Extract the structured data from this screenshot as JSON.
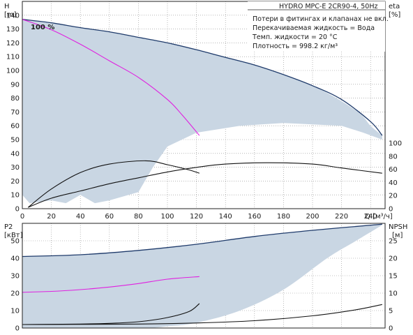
{
  "chart_data": [
    {
      "type": "line",
      "title": "HYDRO MPC-E 2CR90-4, 50Hz",
      "notes": [
        "Потери в фитингах и клапанах не вкл.",
        "Перекачиваемая жидкость = Вода",
        "Темп. жидкости = 20 °C",
        "Плотность = 998.2 кг/м³"
      ],
      "speed_label": "100 %",
      "xlabel": "Q [м³/ч]",
      "xlim": [
        0,
        250
      ],
      "x_ticks": [
        0,
        20,
        40,
        60,
        80,
        100,
        120,
        140,
        160,
        180,
        200,
        220,
        240
      ],
      "left_axis": {
        "label": "H",
        "unit": "[m]",
        "range": [
          0,
          150
        ],
        "ticks": [
          0,
          10,
          20,
          30,
          40,
          50,
          60,
          70,
          80,
          90,
          100,
          110,
          120,
          130,
          140
        ]
      },
      "right_axis": {
        "label": "eta",
        "unit": "[%]",
        "range": [
          0,
          100
        ],
        "ticks": [
          0,
          20,
          40,
          60,
          80,
          100
        ]
      },
      "grid": true,
      "colors": {
        "navy": "#1f3b6b",
        "magenta": "#e020e0",
        "black": "#111111",
        "area": "#c9d6e3"
      },
      "area_series": {
        "axis": "H",
        "upper": [
          [
            0,
            137
          ],
          [
            40,
            131
          ],
          [
            80,
            124
          ],
          [
            120,
            115
          ],
          [
            160,
            104
          ],
          [
            200,
            89
          ],
          [
            230,
            71
          ],
          [
            240,
            60
          ],
          [
            248,
            53
          ]
        ],
        "lower": [
          [
            248,
            50
          ],
          [
            235,
            55
          ],
          [
            220,
            60
          ],
          [
            180,
            62
          ],
          [
            150,
            60
          ],
          [
            120,
            55
          ],
          [
            100,
            45
          ],
          [
            90,
            30
          ],
          [
            80,
            12
          ],
          [
            60,
            6
          ],
          [
            50,
            4
          ],
          [
            40,
            10
          ],
          [
            30,
            4
          ],
          [
            20,
            6
          ],
          [
            5,
            4
          ],
          [
            0,
            10
          ]
        ]
      },
      "series": [
        {
          "axis": "H",
          "color": "navy",
          "points": [
            [
              0,
              137
            ],
            [
              20,
              134.5
            ],
            [
              40,
              131
            ],
            [
              60,
              128
            ],
            [
              80,
              124
            ],
            [
              100,
              120
            ],
            [
              120,
              115
            ],
            [
              140,
              109.5
            ],
            [
              160,
              104
            ],
            [
              180,
              97
            ],
            [
              200,
              89
            ],
            [
              220,
              79
            ],
            [
              240,
              63
            ],
            [
              248,
              53
            ]
          ]
        },
        {
          "axis": "H",
          "color": "magenta",
          "points": [
            [
              0,
              137
            ],
            [
              20,
              129.5
            ],
            [
              40,
              119
            ],
            [
              60,
              107
            ],
            [
              80,
              95
            ],
            [
              100,
              79
            ],
            [
              110,
              68
            ],
            [
              122,
              53
            ]
          ]
        },
        {
          "axis": "eta",
          "color": "black",
          "points": [
            [
              4,
              2
            ],
            [
              20,
              30
            ],
            [
              40,
              55
            ],
            [
              60,
              68
            ],
            [
              85,
              73
            ],
            [
              100,
              67
            ],
            [
              115,
              59
            ],
            [
              122,
              54
            ]
          ]
        },
        {
          "axis": "eta",
          "color": "black",
          "points": [
            [
              4,
              2
            ],
            [
              20,
              16
            ],
            [
              40,
              27
            ],
            [
              60,
              38
            ],
            [
              80,
              47
            ],
            [
              100,
              56
            ],
            [
              120,
              63
            ],
            [
              140,
              68
            ],
            [
              170,
              70
            ],
            [
              200,
              68
            ],
            [
              220,
              62
            ],
            [
              248,
              54
            ]
          ]
        }
      ]
    },
    {
      "type": "line",
      "xlim": [
        0,
        250
      ],
      "left_axis": {
        "label": "P2",
        "unit": "[кВт]",
        "range": [
          0,
          60
        ],
        "ticks": [
          0,
          10,
          20,
          30,
          40,
          50
        ]
      },
      "right_axis": {
        "label": "NPSH",
        "unit": "[м]",
        "range": [
          0,
          30
        ],
        "ticks": [
          0,
          5,
          10,
          15,
          20,
          25
        ]
      },
      "grid": true,
      "area_series": {
        "axis": "P2",
        "upper": [
          [
            0,
            41
          ],
          [
            40,
            42
          ],
          [
            80,
            44.5
          ],
          [
            120,
            48
          ],
          [
            160,
            52.5
          ],
          [
            200,
            56
          ],
          [
            248,
            59
          ]
        ],
        "lower": [
          [
            248,
            59
          ],
          [
            230,
            50
          ],
          [
            210,
            40
          ],
          [
            180,
            22
          ],
          [
            150,
            10
          ],
          [
            120,
            3
          ],
          [
            100,
            1
          ],
          [
            80,
            0
          ],
          [
            0,
            0
          ]
        ]
      },
      "series": [
        {
          "axis": "P2",
          "color": "navy",
          "points": [
            [
              0,
              41
            ],
            [
              40,
              42
            ],
            [
              80,
              44.5
            ],
            [
              120,
              48
            ],
            [
              160,
              52.5
            ],
            [
              200,
              56
            ],
            [
              248,
              59.5
            ]
          ]
        },
        {
          "axis": "P2",
          "color": "magenta",
          "points": [
            [
              0,
              20.5
            ],
            [
              20,
              21
            ],
            [
              40,
              22
            ],
            [
              60,
              23.5
            ],
            [
              80,
              25.5
            ],
            [
              100,
              28
            ],
            [
              122,
              29.5
            ]
          ]
        },
        {
          "axis": "P2",
          "color": "black",
          "points": [
            [
              0,
              2
            ],
            [
              40,
              2.3
            ],
            [
              60,
              2.7
            ],
            [
              80,
              3.6
            ],
            [
              100,
              6
            ],
            [
              115,
              9.5
            ],
            [
              122,
              14
            ]
          ]
        },
        {
          "axis": "P2",
          "color": "black",
          "points": [
            [
              0,
              2
            ],
            [
              80,
              2.3
            ],
            [
              120,
              2.9
            ],
            [
              160,
              4.2
            ],
            [
              200,
              7
            ],
            [
              230,
              10.5
            ],
            [
              248,
              13.5
            ]
          ]
        }
      ]
    }
  ]
}
